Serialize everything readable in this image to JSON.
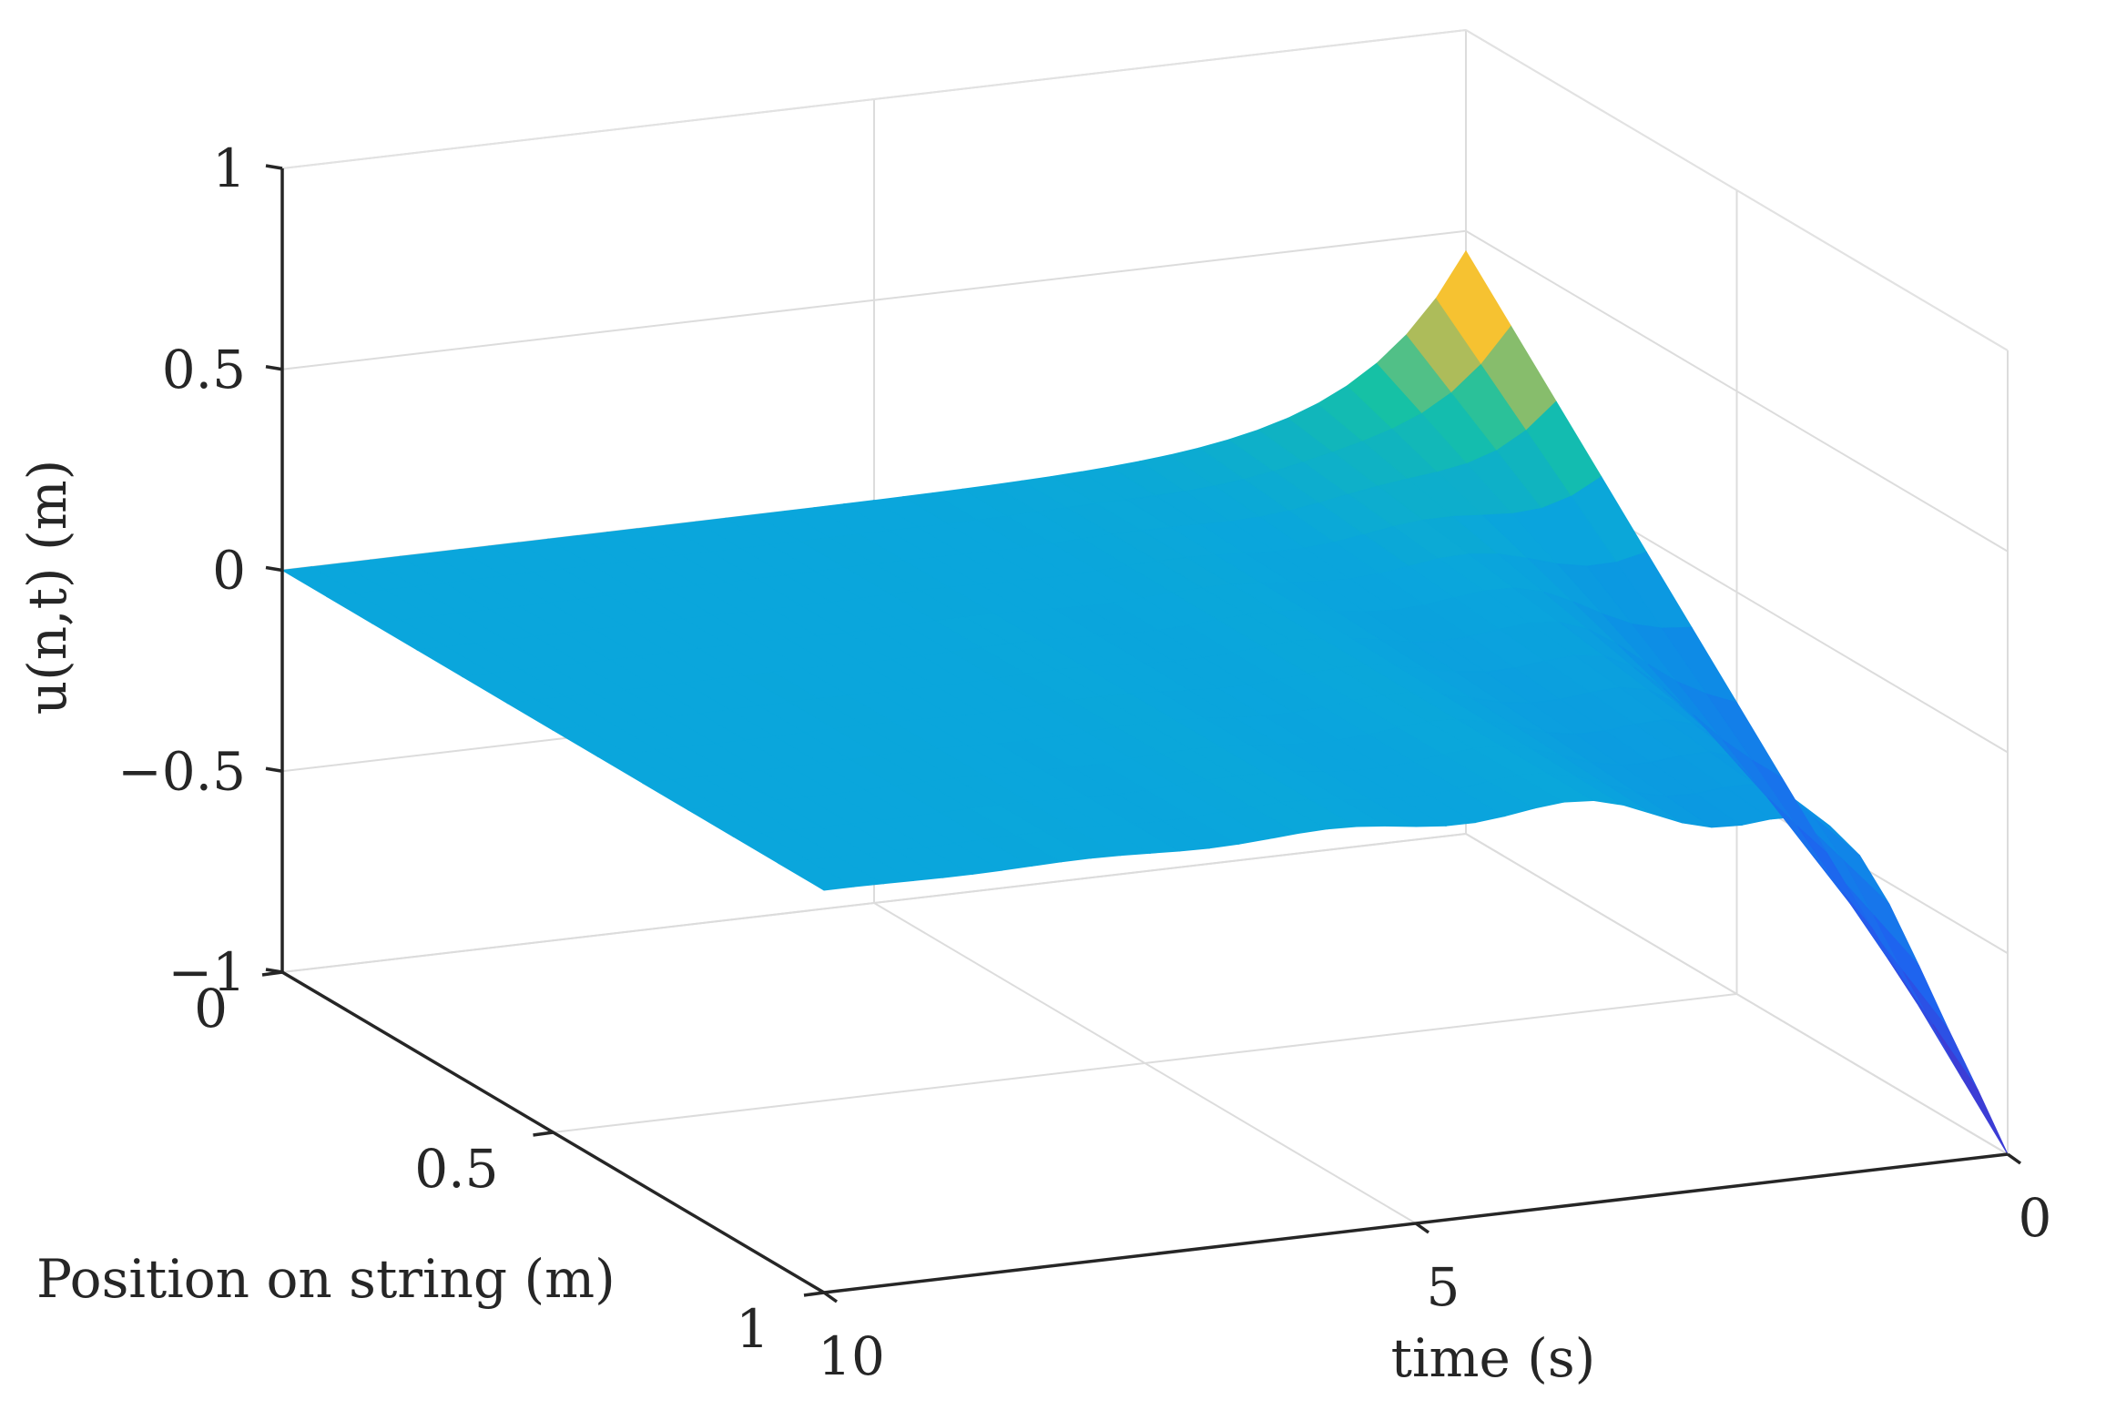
{
  "chart_data": {
    "type": "surface",
    "title": "",
    "xlabel": "time (s)",
    "ylabel": "Position on string (m)",
    "zlabel": "u(n,t) (m)",
    "time_ticks": [
      "10",
      "5",
      "0"
    ],
    "position_ticks": [
      "0",
      "0.5",
      "1"
    ],
    "z_ticks": [
      "1",
      "0.5",
      "0",
      "−0.5",
      "−1"
    ],
    "time_range": [
      0,
      10
    ],
    "position_range": [
      0,
      1
    ],
    "z_range": [
      -1,
      1
    ],
    "grid": true,
    "colormap": "parula",
    "surface_summary": {
      "description_values": "displacement at time 0 ranges linearly from 0.45 at position 0 to -1.0 at position 1; oscillations decay to ~0 by t=5",
      "t0_edge": {
        "position": [
          0,
          0.5,
          1
        ],
        "u": [
          0.45,
          -0.3,
          -1.0
        ]
      },
      "far_edge_position1": {
        "t": [
          0,
          1,
          2,
          3,
          4,
          5,
          6,
          8,
          10
        ],
        "u": [
          -1.0,
          -0.4,
          -0.27,
          -0.13,
          -0.1,
          -0.07,
          -0.05,
          -0.02,
          0.0
        ]
      }
    }
  }
}
